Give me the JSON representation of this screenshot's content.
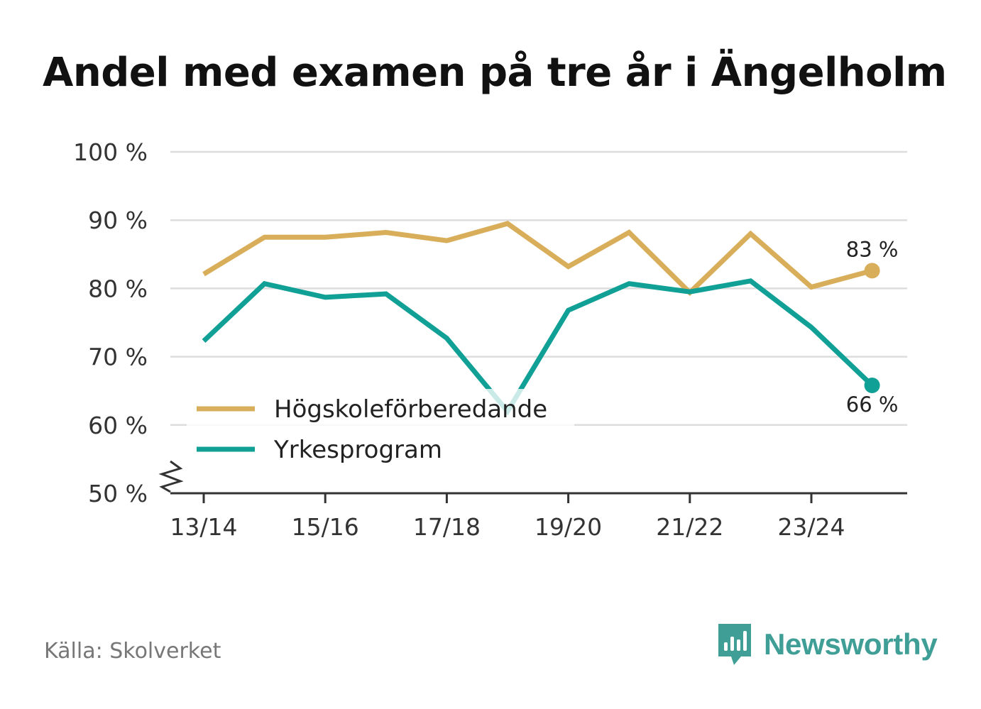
{
  "chart_data": {
    "type": "line",
    "title": "Andel med examen på tre år i Ängelholm",
    "categories": [
      "13/14",
      "14/15",
      "15/16",
      "16/17",
      "17/18",
      "18/19",
      "19/20",
      "20/21",
      "21/22",
      "22/23",
      "23/24",
      "24/25"
    ],
    "tick_labels": [
      "13/14",
      "15/16",
      "17/18",
      "19/20",
      "21/22",
      "23/24"
    ],
    "ylim": [
      50,
      100
    ],
    "y_ticks": [
      50,
      60,
      70,
      80,
      90,
      100
    ],
    "y_tick_labels": [
      "50 %",
      "60 %",
      "70 %",
      "80 %",
      "90 %",
      "100 %"
    ],
    "axis_break": true,
    "grid": true,
    "legend_position": "bottom-left",
    "series": [
      {
        "name": "Högskoleförberedande",
        "color": "#d9ae5a",
        "values": [
          82.1,
          87.5,
          87.5,
          88.2,
          87.0,
          89.5,
          83.2,
          88.2,
          79.4,
          88.0,
          80.2,
          82.6
        ],
        "end_label": "83 %",
        "end_label_position": "above"
      },
      {
        "name": "Yrkesprogram",
        "color": "#11a096",
        "values": [
          72.3,
          80.7,
          78.7,
          79.2,
          72.7,
          62.0,
          76.8,
          80.7,
          79.5,
          81.1,
          74.3,
          65.8
        ],
        "end_label": "66 %",
        "end_label_position": "below"
      }
    ]
  },
  "source": "Källa: Skolverket",
  "brand": {
    "name": "Newsworthy",
    "icon": "bar-chart-speech-bubble-icon"
  },
  "colors": {
    "grid": "#dddddd",
    "axis": "#333333",
    "text": "#333333",
    "brand": "#3f9e96"
  }
}
